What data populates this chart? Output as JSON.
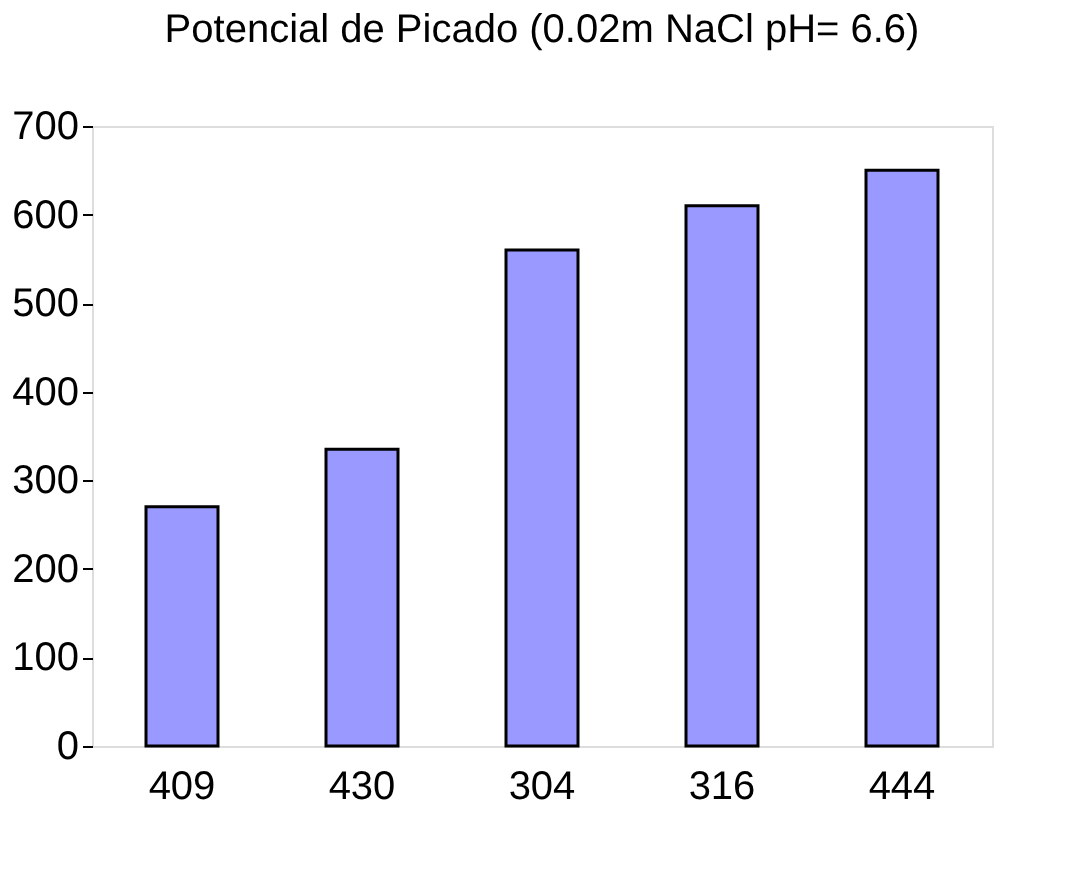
{
  "chart_data": {
    "type": "bar",
    "title": "Potencial de Picado (0.02m NaCl pH= 6.6)",
    "categories": [
      "409",
      "430",
      "304",
      "316",
      "444"
    ],
    "values": [
      270,
      335,
      560,
      610,
      650
    ],
    "color": "#9999ff",
    "ylim": [
      0,
      700
    ],
    "yticks": [
      0,
      100,
      200,
      300,
      400,
      500,
      600,
      700
    ],
    "grid": false
  }
}
